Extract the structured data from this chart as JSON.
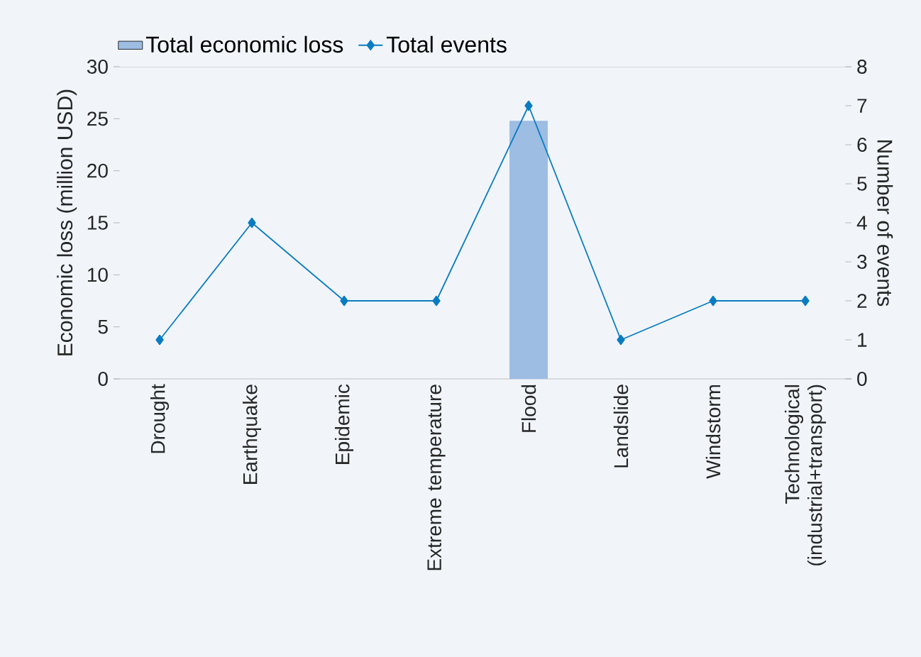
{
  "chart_data": {
    "type": "bar",
    "ylabel": "Economic loss (million USD)",
    "y2label": "Number of events",
    "categories": [
      "Drought",
      "Earthquake",
      "Epidemic",
      "Extreme temperature",
      "Flood",
      "Landslide",
      "Windstorm",
      "Technological (industrial+transport)"
    ],
    "series": [
      {
        "name": "Total economic loss",
        "color": "#9dbde3",
        "values": [
          null,
          null,
          null,
          null,
          24.8,
          null,
          null,
          null
        ]
      },
      {
        "name": "Total events",
        "type": "line",
        "axis": "y2",
        "color": "#0a7cc1",
        "marker": "diamond",
        "values": [
          1,
          4,
          2,
          2,
          7,
          1,
          2,
          2
        ]
      }
    ],
    "ylim": [
      0,
      30
    ],
    "yticks": [
      0,
      5,
      10,
      15,
      20,
      25,
      30
    ],
    "y2lim": [
      0,
      8
    ],
    "y2ticks": [
      0,
      1,
      2,
      3,
      4,
      5,
      6,
      7,
      8
    ],
    "legend": "top"
  }
}
